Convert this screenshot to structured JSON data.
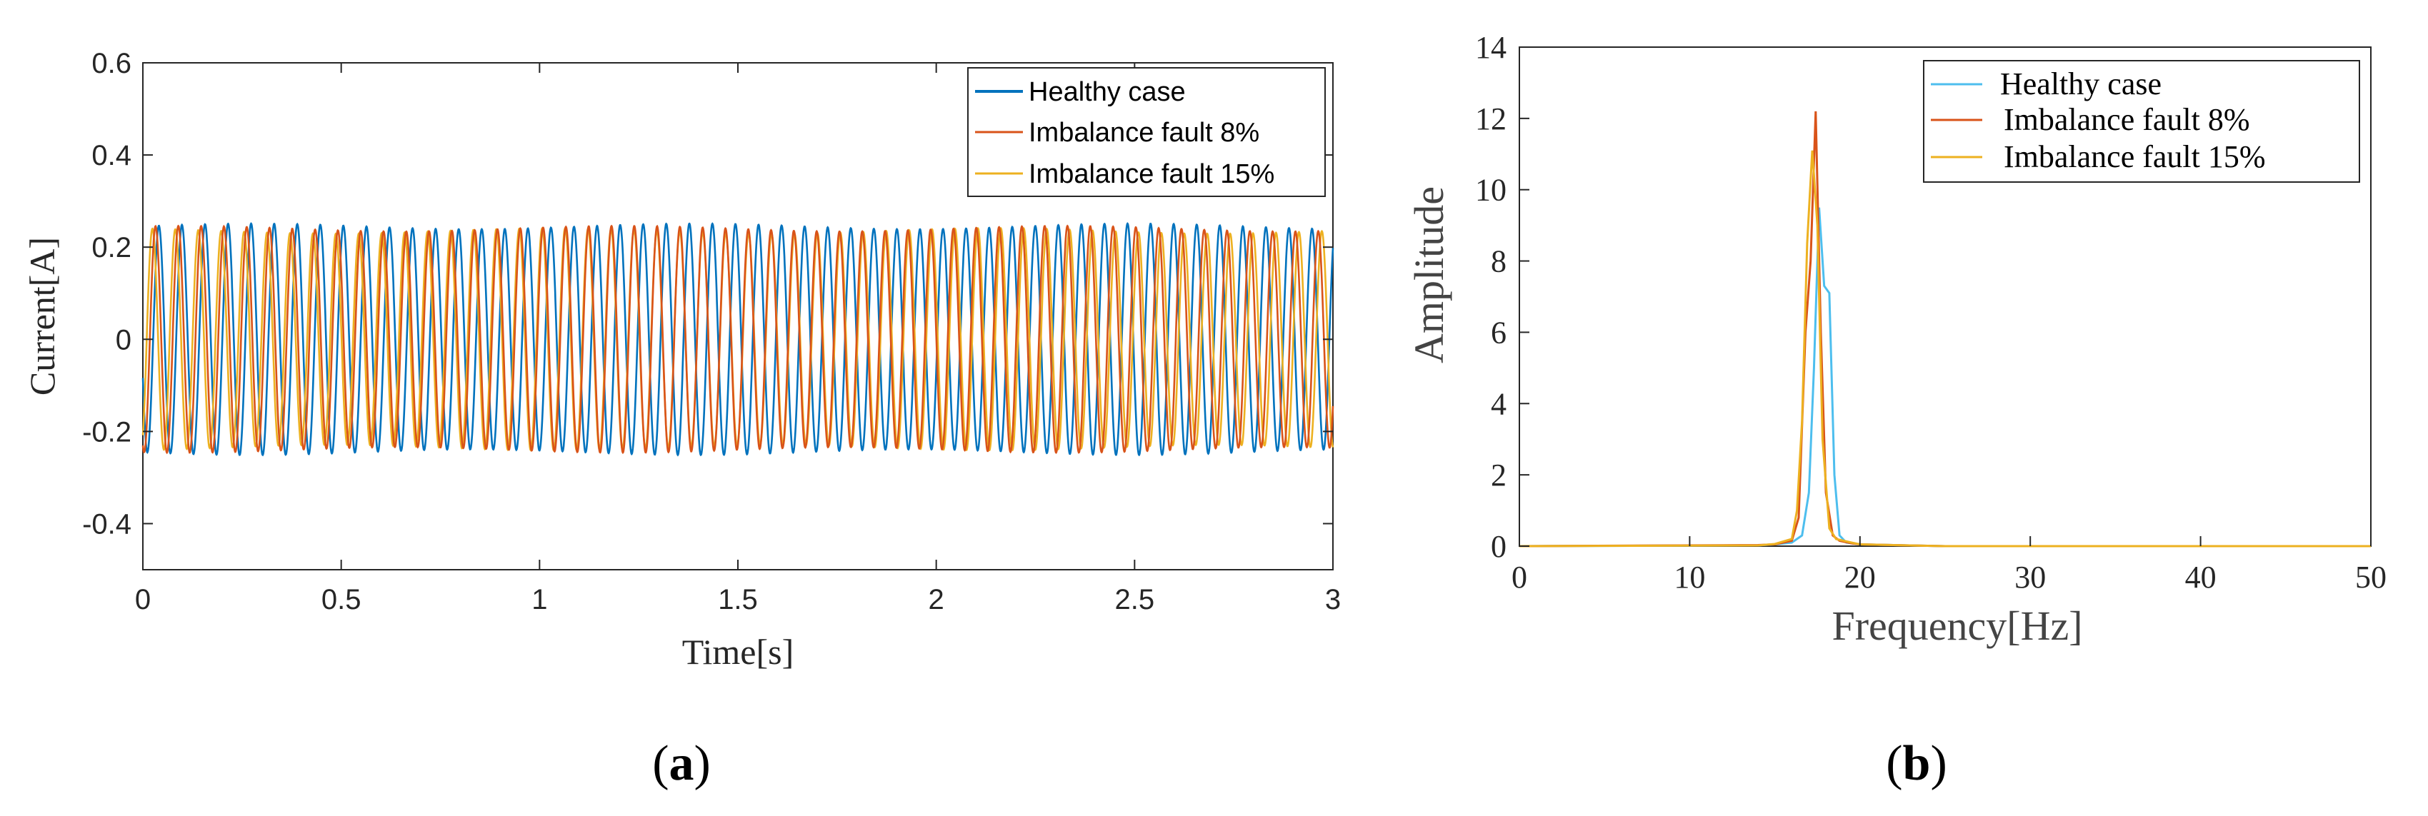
{
  "chart_data": [
    {
      "panel": "a",
      "type": "line",
      "title": "",
      "xlabel": "Time[s]",
      "ylabel": "Current[A]",
      "xlim": [
        0,
        3
      ],
      "ylim": [
        -0.5,
        0.6
      ],
      "xticks": [
        0,
        0.5,
        1,
        1.5,
        2,
        2.5,
        3
      ],
      "xtick_labels": [
        "0",
        "0.5",
        "1",
        "1.5",
        "2",
        "2.5",
        "3"
      ],
      "yticks": [
        -0.4,
        -0.2,
        0,
        0.2,
        0.4,
        0.6
      ],
      "ytick_labels": [
        "-0.4",
        "-0.2",
        "0",
        "0.2",
        "0.4",
        "0.6"
      ],
      "grid": false,
      "legend_position": "top-right",
      "series": [
        {
          "name": "Healthy case",
          "color": "#0072BD",
          "amplitude": 0.245,
          "frequency_hz": 17.2,
          "phase_deg": 200
        },
        {
          "name": "Imbalance fault 8%",
          "color": "#D95319",
          "amplitude": 0.24,
          "frequency_hz": 17.4,
          "phase_deg": 250
        },
        {
          "name": "Imbalance fault 15%",
          "color": "#EDB120",
          "amplitude": 0.235,
          "frequency_hz": 17.3,
          "phase_deg": 300
        }
      ],
      "caption": "(a)"
    },
    {
      "panel": "b",
      "type": "line",
      "title": "",
      "xlabel": "Frequency[Hz]",
      "ylabel": "Amplitude",
      "xlim": [
        0,
        50
      ],
      "ylim": [
        0,
        14
      ],
      "xticks": [
        0,
        10,
        20,
        30,
        40,
        50
      ],
      "xtick_labels": [
        "0",
        "10",
        "20",
        "30",
        "40",
        "50"
      ],
      "yticks": [
        0,
        2,
        4,
        6,
        8,
        10,
        12,
        14
      ],
      "ytick_labels": [
        "0",
        "2",
        "4",
        "6",
        "8",
        "10",
        "12",
        "14"
      ],
      "grid": false,
      "legend_position": "top-right",
      "series": [
        {
          "name": "Healthy case",
          "color": "#4DBEEE",
          "x": [
            0,
            14,
            15,
            16,
            16.6,
            17,
            17.3,
            17.6,
            17.9,
            18.2,
            18.5,
            18.8,
            19.2,
            20,
            25,
            50
          ],
          "y": [
            0,
            0.02,
            0.05,
            0.1,
            0.3,
            1.5,
            5.0,
            9.5,
            7.3,
            7.1,
            2.0,
            0.3,
            0.1,
            0.05,
            0,
            0
          ]
        },
        {
          "name": "Imbalance fault 8%",
          "color": "#D95319",
          "x": [
            0,
            14,
            15,
            16,
            16.4,
            16.8,
            17.1,
            17.4,
            17.7,
            18.0,
            18.4,
            18.8,
            19.5,
            20,
            25,
            50
          ],
          "y": [
            0,
            0.03,
            0.05,
            0.15,
            0.8,
            6.0,
            8.0,
            12.2,
            6.0,
            1.5,
            0.3,
            0.15,
            0.08,
            0.05,
            0,
            0
          ]
        },
        {
          "name": "Imbalance fault 15%",
          "color": "#EDB120",
          "x": [
            0,
            14,
            15,
            16,
            16.3,
            16.6,
            16.9,
            17.2,
            17.5,
            17.8,
            18.2,
            18.6,
            19.5,
            20,
            25,
            50
          ],
          "y": [
            0,
            0.02,
            0.06,
            0.2,
            1.0,
            3.5,
            8.5,
            11.1,
            9.0,
            3.0,
            0.5,
            0.2,
            0.1,
            0.05,
            0,
            0
          ]
        }
      ],
      "caption": "(b)"
    }
  ]
}
